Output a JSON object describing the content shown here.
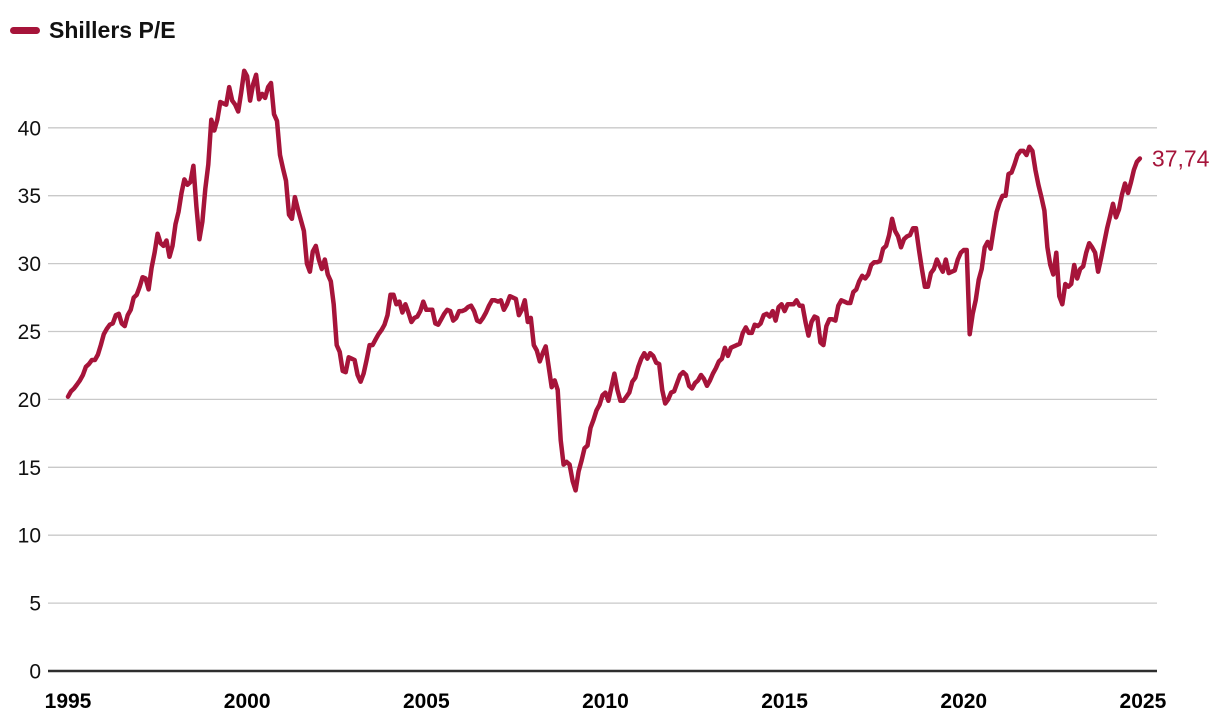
{
  "legend": {
    "label": "Shillers P/E"
  },
  "colors": {
    "line": "#A6143A",
    "grid": "#C9C9C9",
    "axis": "#2E2E2E",
    "text": "#000000"
  },
  "chart_data": {
    "type": "line",
    "title": "Shillers P/E",
    "legend_entries": [
      "Shillers P/E"
    ],
    "legend_position": "top-left",
    "grid": "horizontal-only",
    "xlabel": "",
    "ylabel": "",
    "ylim": [
      0,
      45
    ],
    "xlim": [
      1995,
      2025
    ],
    "yticks": [
      0,
      5,
      10,
      15,
      20,
      25,
      30,
      35,
      40
    ],
    "xticks": [
      1995,
      2000,
      2005,
      2010,
      2015,
      2020,
      2025
    ],
    "end_label": "37,74",
    "last_value": 37.74,
    "series": [
      {
        "name": "Shillers P/E",
        "color": "#A6143A",
        "start": "1995-01",
        "end": "2024-12",
        "frequency": "monthly",
        "values": [
          20.2,
          20.6,
          20.8,
          21.1,
          21.4,
          21.8,
          22.4,
          22.6,
          22.9,
          22.9,
          23.3,
          24.0,
          24.8,
          25.2,
          25.5,
          25.6,
          26.2,
          26.3,
          25.6,
          25.4,
          26.2,
          26.6,
          27.5,
          27.7,
          28.3,
          29.0,
          28.9,
          28.1,
          29.7,
          30.8,
          32.2,
          31.5,
          31.3,
          31.7,
          30.5,
          31.3,
          32.9,
          33.8,
          35.2,
          36.2,
          35.8,
          36.0,
          37.2,
          34.2,
          31.8,
          33.1,
          35.5,
          37.3,
          40.6,
          39.8,
          40.6,
          41.9,
          41.8,
          41.7,
          43.0,
          42.0,
          41.7,
          41.2,
          42.6,
          44.2,
          43.8,
          42.0,
          43.2,
          43.9,
          42.1,
          42.5,
          42.2,
          43.0,
          43.3,
          41.0,
          40.5,
          38.0,
          37.0,
          36.1,
          33.6,
          33.3,
          34.9,
          34.0,
          33.2,
          32.4,
          30.0,
          29.4,
          30.9,
          31.3,
          30.3,
          29.6,
          30.3,
          29.2,
          28.7,
          27.0,
          24.0,
          23.5,
          22.1,
          22.0,
          23.1,
          23.0,
          22.9,
          21.8,
          21.3,
          21.9,
          22.9,
          24.0,
          24.0,
          24.4,
          24.8,
          25.1,
          25.5,
          26.2,
          27.7,
          27.7,
          27.0,
          27.2,
          26.4,
          27.0,
          26.4,
          25.7,
          26.0,
          26.1,
          26.5,
          27.2,
          26.6,
          26.6,
          26.6,
          25.6,
          25.5,
          25.9,
          26.3,
          26.6,
          26.5,
          25.8,
          26.0,
          26.5,
          26.5,
          26.6,
          26.8,
          26.9,
          26.5,
          25.8,
          25.7,
          26.0,
          26.4,
          26.9,
          27.3,
          27.3,
          27.2,
          27.3,
          26.6,
          27.0,
          27.6,
          27.5,
          27.4,
          26.2,
          26.6,
          27.3,
          25.7,
          26.0,
          24.0,
          23.6,
          22.8,
          23.4,
          23.9,
          22.4,
          20.9,
          21.4,
          20.7,
          17.0,
          15.2,
          15.4,
          15.2,
          14.0,
          13.3,
          14.7,
          15.5,
          16.4,
          16.6,
          17.9,
          18.5,
          19.2,
          19.6,
          20.3,
          20.5,
          19.9,
          20.9,
          21.9,
          20.7,
          19.9,
          19.9,
          20.2,
          20.5,
          21.3,
          21.6,
          22.4,
          23.0,
          23.4,
          23.0,
          23.4,
          23.2,
          22.7,
          22.6,
          20.7,
          19.7,
          20.0,
          20.5,
          20.6,
          21.2,
          21.8,
          22.0,
          21.8,
          21.0,
          20.8,
          21.2,
          21.4,
          21.8,
          21.5,
          21.0,
          21.4,
          21.9,
          22.3,
          22.8,
          23.0,
          23.8,
          23.2,
          23.8,
          23.9,
          24.0,
          24.1,
          24.9,
          25.3,
          24.9,
          24.9,
          25.5,
          25.4,
          25.6,
          26.2,
          26.3,
          26.1,
          26.5,
          25.8,
          26.8,
          27.0,
          26.5,
          27.0,
          27.0,
          27.0,
          27.3,
          26.9,
          26.9,
          25.7,
          24.7,
          25.7,
          26.1,
          26.0,
          24.2,
          24.0,
          25.4,
          25.9,
          25.9,
          25.8,
          26.9,
          27.3,
          27.2,
          27.1,
          27.1,
          27.9,
          28.1,
          28.7,
          29.1,
          28.9,
          29.2,
          29.9,
          30.1,
          30.1,
          30.2,
          31.1,
          31.3,
          32.1,
          33.3,
          32.4,
          32.0,
          31.2,
          31.8,
          32.0,
          32.1,
          32.6,
          32.6,
          31.0,
          29.6,
          28.3,
          28.3,
          29.3,
          29.6,
          30.3,
          29.8,
          29.4,
          30.3,
          29.3,
          29.4,
          29.5,
          30.3,
          30.8,
          31.0,
          31.0,
          24.8,
          26.3,
          27.3,
          28.8,
          29.6,
          31.2,
          31.6,
          31.1,
          32.5,
          33.8,
          34.5,
          35.0,
          35.0,
          36.6,
          36.7,
          37.3,
          38.0,
          38.3,
          38.3,
          38.0,
          38.6,
          38.3,
          36.9,
          35.8,
          34.9,
          33.9,
          31.2,
          29.9,
          29.2,
          30.8,
          27.6,
          27.0,
          28.5,
          28.3,
          28.5,
          29.9,
          28.9,
          29.6,
          29.8,
          30.8,
          31.5,
          31.2,
          30.8,
          29.4,
          30.4,
          31.5,
          32.6,
          33.5,
          34.4,
          33.4,
          34.0,
          35.1,
          35.9,
          35.2,
          36.0,
          36.9,
          37.5,
          37.74
        ]
      }
    ]
  }
}
